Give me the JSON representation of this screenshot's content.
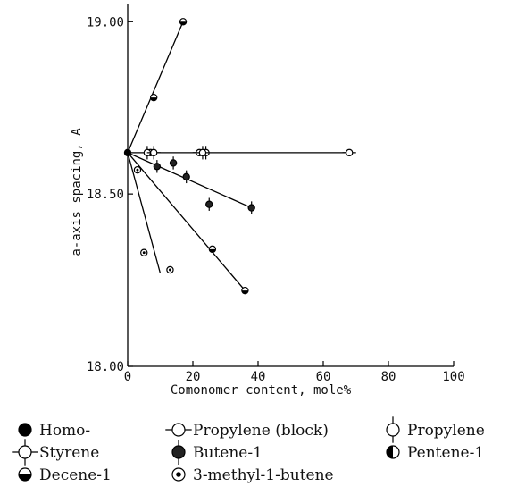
{
  "chart_data": {
    "type": "scatter",
    "xlabel": "Comonomer content, mole%",
    "ylabel": "a-axis spacing, A",
    "xlim": [
      0,
      100
    ],
    "ylim": [
      18.0,
      19.05
    ],
    "x_ticks": [
      "0",
      "20",
      "40",
      "60",
      "80",
      "100"
    ],
    "y_ticks": [
      "18.00",
      "18.50",
      "19.00"
    ],
    "x_tick_values": [
      0,
      20,
      40,
      60,
      80,
      100
    ],
    "y_tick_values": [
      18.0,
      18.5,
      19.0
    ],
    "grid": false,
    "legend_placement": "bottom",
    "series": [
      {
        "name": "Homo-",
        "marker": "filled",
        "points": [
          [
            0,
            18.62
          ]
        ]
      },
      {
        "name": "Propylene (block)",
        "marker": "hbar",
        "points": [
          [
            7,
            18.62
          ],
          [
            22,
            18.62
          ],
          [
            68,
            18.62
          ]
        ]
      },
      {
        "name": "Propylene",
        "marker": "vbar",
        "points": [
          [
            6,
            18.62
          ],
          [
            24,
            18.62
          ]
        ]
      },
      {
        "name": "Styrene",
        "marker": "cross",
        "points": [
          [
            8,
            18.62
          ],
          [
            23,
            18.62
          ]
        ]
      },
      {
        "name": "Butene-1",
        "marker": "filled-bar",
        "points": [
          [
            9,
            18.58
          ],
          [
            14,
            18.59
          ],
          [
            18,
            18.55
          ],
          [
            25,
            18.47
          ],
          [
            38,
            18.46
          ]
        ]
      },
      {
        "name": "Pentene-1",
        "marker": "half-left",
        "points": []
      },
      {
        "name": "Decene-1",
        "marker": "half-bottom",
        "points": [
          [
            8,
            18.78
          ],
          [
            17,
            19.0
          ],
          [
            26,
            18.34
          ],
          [
            36,
            18.22
          ]
        ]
      },
      {
        "name": "3-methyl-1-butene",
        "marker": "dot",
        "points": [
          [
            3,
            18.57
          ],
          [
            5,
            18.33
          ],
          [
            13,
            18.28
          ]
        ]
      }
    ],
    "trend_lines": [
      {
        "from": [
          0,
          18.62
        ],
        "to": [
          17,
          19.0
        ]
      },
      {
        "from": [
          0,
          18.62
        ],
        "to": [
          68,
          18.62
        ]
      },
      {
        "from": [
          0,
          18.62
        ],
        "to": [
          38,
          18.46
        ]
      },
      {
        "from": [
          0,
          18.62
        ],
        "to": [
          36,
          18.22
        ]
      },
      {
        "from": [
          0,
          18.62
        ],
        "to": [
          10,
          18.27
        ]
      }
    ]
  },
  "legend": [
    {
      "label": "Homo-",
      "marker": "filled"
    },
    {
      "label": "Propylene (block)",
      "marker": "hbar"
    },
    {
      "label": "Propylene",
      "marker": "vbar"
    },
    {
      "label": "Styrene",
      "marker": "cross"
    },
    {
      "label": "Butene-1",
      "marker": "filled-bar"
    },
    {
      "label": "Pentene-1",
      "marker": "half-left"
    },
    {
      "label": "Decene-1",
      "marker": "half-bottom"
    },
    {
      "label": "3-methyl-1-butene",
      "marker": "dot"
    }
  ]
}
